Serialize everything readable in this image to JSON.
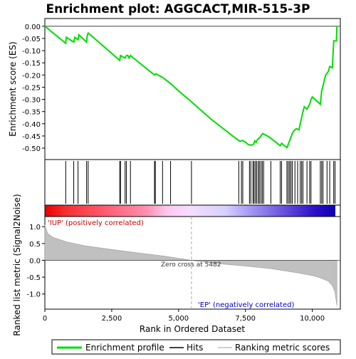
{
  "chart_data": {
    "type": "line",
    "title": "Enrichment plot: AGGCACT,MIR-515-3P",
    "xlabel": "Rank in Ordered Dataset",
    "ylabel_top": "Enrichment score (ES)",
    "ylabel_bottom": "Ranked list metric (Signal2Noise)",
    "xlim": [
      0,
      11500
    ],
    "x_ticks": [
      0,
      2500,
      5000,
      7500,
      10000
    ],
    "x_tick_labels": [
      "0",
      "2,500",
      "5,000",
      "7,500",
      "10,000"
    ],
    "es_panel": {
      "ylim": [
        -0.535,
        0.02
      ],
      "y_ticks": [
        0.0,
        -0.05,
        -0.1,
        -0.15,
        -0.2,
        -0.25,
        -0.3,
        -0.35,
        -0.4,
        -0.45,
        -0.5
      ],
      "y_tick_labels": [
        "0.00",
        "-0.05",
        "-0.10",
        "-0.15",
        "-0.20",
        "-0.25",
        "-0.30",
        "-0.35",
        "-0.40",
        "-0.45",
        "-0.50"
      ],
      "series_name": "Enrichment profile",
      "color": "#00dd00",
      "points": [
        [
          0,
          0.0
        ],
        [
          780,
          -0.07
        ],
        [
          800,
          -0.045
        ],
        [
          1080,
          -0.065
        ],
        [
          1120,
          -0.045
        ],
        [
          1240,
          -0.055
        ],
        [
          1270,
          -0.035
        ],
        [
          1560,
          -0.065
        ],
        [
          1580,
          -0.04
        ],
        [
          1620,
          -0.028
        ],
        [
          2800,
          -0.14
        ],
        [
          2830,
          -0.12
        ],
        [
          3000,
          -0.13
        ],
        [
          3050,
          -0.12
        ],
        [
          3100,
          -0.12
        ],
        [
          3150,
          -0.13
        ],
        [
          3200,
          -0.12
        ],
        [
          3250,
          -0.125
        ],
        [
          4100,
          -0.2
        ],
        [
          4150,
          -0.195
        ],
        [
          4400,
          -0.21
        ],
        [
          4700,
          -0.235
        ],
        [
          5000,
          -0.265
        ],
        [
          5482,
          -0.31
        ],
        [
          6200,
          -0.38
        ],
        [
          7200,
          -0.465
        ],
        [
          7300,
          -0.472
        ],
        [
          7380,
          -0.468
        ],
        [
          7500,
          -0.475
        ],
        [
          7600,
          -0.485
        ],
        [
          7700,
          -0.488
        ],
        [
          7800,
          -0.484
        ],
        [
          7850,
          -0.47
        ],
        [
          7900,
          -0.476
        ],
        [
          7950,
          -0.465
        ],
        [
          8000,
          -0.46
        ],
        [
          8050,
          -0.455
        ],
        [
          8100,
          -0.445
        ],
        [
          8150,
          -0.44
        ],
        [
          8400,
          -0.455
        ],
        [
          8800,
          -0.49
        ],
        [
          8850,
          -0.48
        ],
        [
          9050,
          -0.498
        ],
        [
          9100,
          -0.485
        ],
        [
          9150,
          -0.47
        ],
        [
          9200,
          -0.455
        ],
        [
          9250,
          -0.44
        ],
        [
          9300,
          -0.43
        ],
        [
          9400,
          -0.42
        ],
        [
          9500,
          -0.425
        ],
        [
          9550,
          -0.4
        ],
        [
          9600,
          -0.375
        ],
        [
          9650,
          -0.35
        ],
        [
          9700,
          -0.33
        ],
        [
          9800,
          -0.34
        ],
        [
          9900,
          -0.32
        ],
        [
          9950,
          -0.3
        ],
        [
          10000,
          -0.29
        ],
        [
          10300,
          -0.32
        ],
        [
          10350,
          -0.265
        ],
        [
          10400,
          -0.245
        ],
        [
          10450,
          -0.22
        ],
        [
          10500,
          -0.2
        ],
        [
          10600,
          -0.185
        ],
        [
          10650,
          -0.165
        ],
        [
          10750,
          -0.17
        ],
        [
          10800,
          -0.06
        ],
        [
          10900,
          -0.06
        ],
        [
          10920,
          0.0
        ]
      ]
    },
    "hits": [
      780,
      1080,
      1240,
      1560,
      1620,
      2800,
      2830,
      3000,
      3050,
      3200,
      4100,
      4130,
      4400,
      4700,
      5482,
      7250,
      7350,
      7400,
      7650,
      7700,
      7780,
      7820,
      7870,
      7920,
      7980,
      8020,
      8080,
      8130,
      8180,
      8450,
      8800,
      8850,
      9050,
      9100,
      9150,
      9200,
      9250,
      9350,
      9450,
      9550,
      9600,
      9650,
      9800,
      9900,
      9950,
      10300,
      10350,
      10400,
      10550,
      10650,
      10800,
      10850
    ],
    "metric_panel": {
      "ylim": [
        -1.45,
        1.3
      ],
      "y_ticks": [
        1.0,
        0.5,
        0.0,
        -0.5,
        -1.0
      ],
      "y_tick_labels": [
        "1.0",
        "0.5",
        "0.0",
        "-0.5",
        "-1.0"
      ],
      "series_name": "Ranking metric scores",
      "points": [
        [
          0,
          1.05
        ],
        [
          100,
          0.8
        ],
        [
          300,
          0.68
        ],
        [
          800,
          0.55
        ],
        [
          1500,
          0.43
        ],
        [
          2500,
          0.32
        ],
        [
          3500,
          0.22
        ],
        [
          4500,
          0.12
        ],
        [
          5482,
          0.0
        ],
        [
          6500,
          -0.1
        ],
        [
          7500,
          -0.17
        ],
        [
          8500,
          -0.25
        ],
        [
          9500,
          -0.38
        ],
        [
          10000,
          -0.45
        ],
        [
          10300,
          -0.52
        ],
        [
          10600,
          -0.62
        ],
        [
          10750,
          -0.75
        ],
        [
          10850,
          -0.95
        ],
        [
          10920,
          -1.35
        ]
      ],
      "pos_label": "'IUP' (positively correlated)",
      "neg_label": "'EP' (negatively correlated)",
      "zero_cross_label": "Zero cross at 5482"
    },
    "legend": {
      "position": "bottom",
      "entries": [
        {
          "label": "Enrichment profile",
          "color": "#00dd00"
        },
        {
          "label": "Hits",
          "color": "#000000"
        },
        {
          "label": "Ranking metric scores",
          "color": "#c0c0c0"
        }
      ]
    }
  }
}
